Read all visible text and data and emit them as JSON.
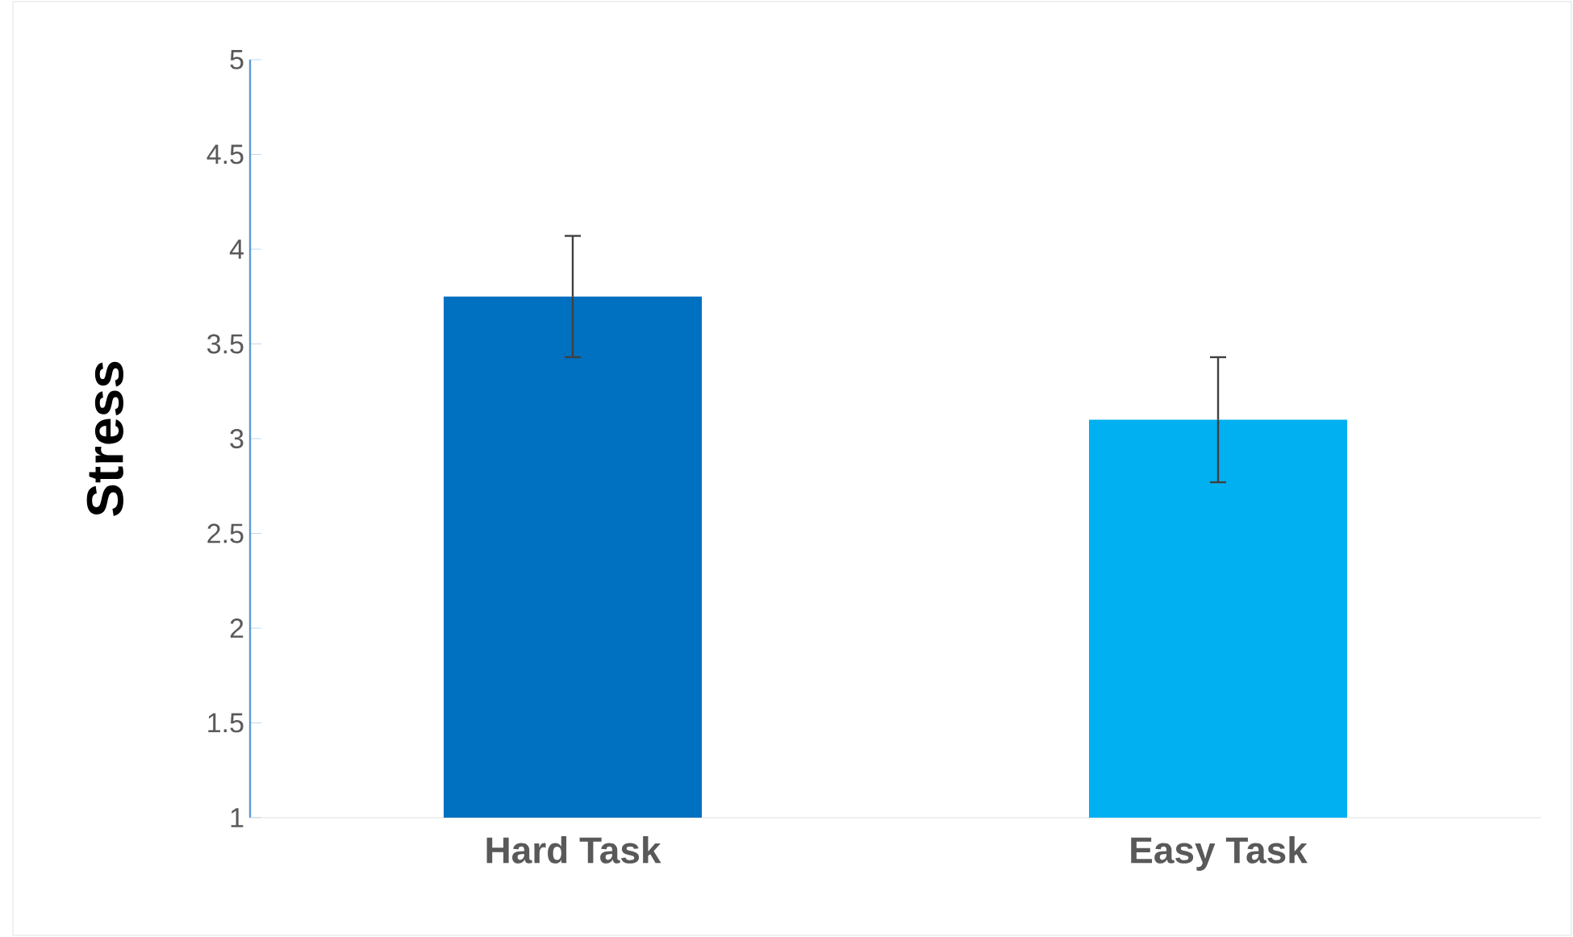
{
  "chart_data": {
    "type": "bar",
    "ylabel": "Stress",
    "categories": [
      "Hard Task",
      "Easy Task"
    ],
    "values": [
      3.75,
      3.1
    ],
    "errors": [
      0.32,
      0.33
    ],
    "colors": [
      "#0070c0",
      "#00b0f0"
    ],
    "ylim": [
      1,
      5
    ],
    "yticks": [
      1,
      1.5,
      2,
      2.5,
      3,
      3.5,
      4,
      4.5,
      5
    ]
  }
}
